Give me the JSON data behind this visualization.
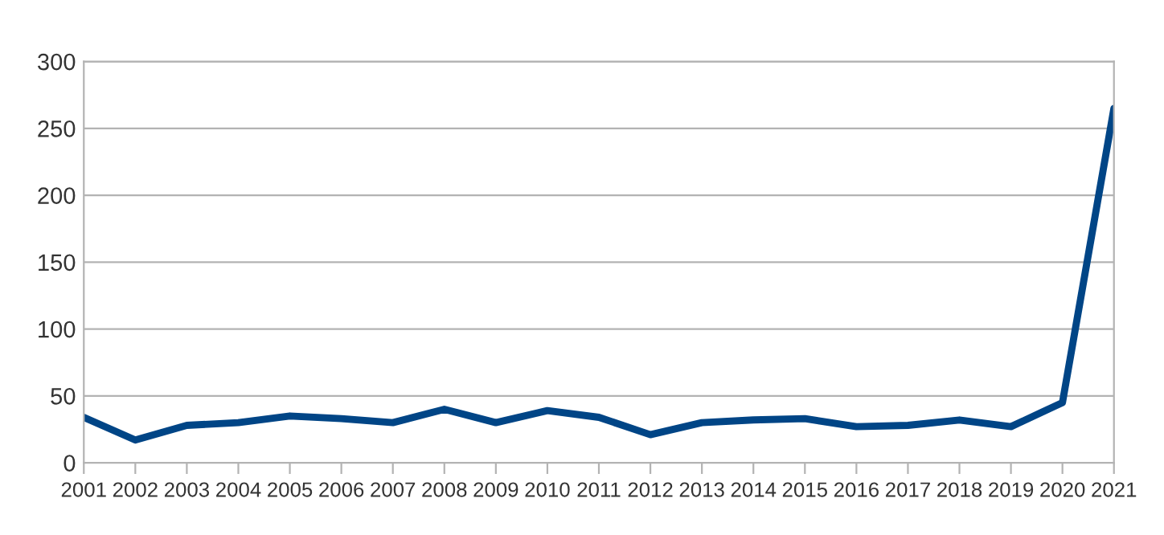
{
  "chart_data": {
    "type": "line",
    "categories": [
      "2001",
      "2002",
      "2003",
      "2004",
      "2005",
      "2006",
      "2007",
      "2008",
      "2009",
      "2010",
      "2011",
      "2012",
      "2013",
      "2014",
      "2015",
      "2016",
      "2017",
      "2018",
      "2019",
      "2020",
      "2021"
    ],
    "series": [
      {
        "color": "#004586",
        "values": [
          34,
          17,
          28,
          30,
          35,
          33,
          30,
          40,
          30,
          39,
          34,
          21,
          30,
          32,
          33,
          27,
          28,
          32,
          27,
          45,
          265
        ]
      }
    ],
    "ylim": [
      0,
      300
    ],
    "yticks": [
      0,
      50,
      100,
      150,
      200,
      250,
      300
    ],
    "grid": "y",
    "legend": false
  }
}
